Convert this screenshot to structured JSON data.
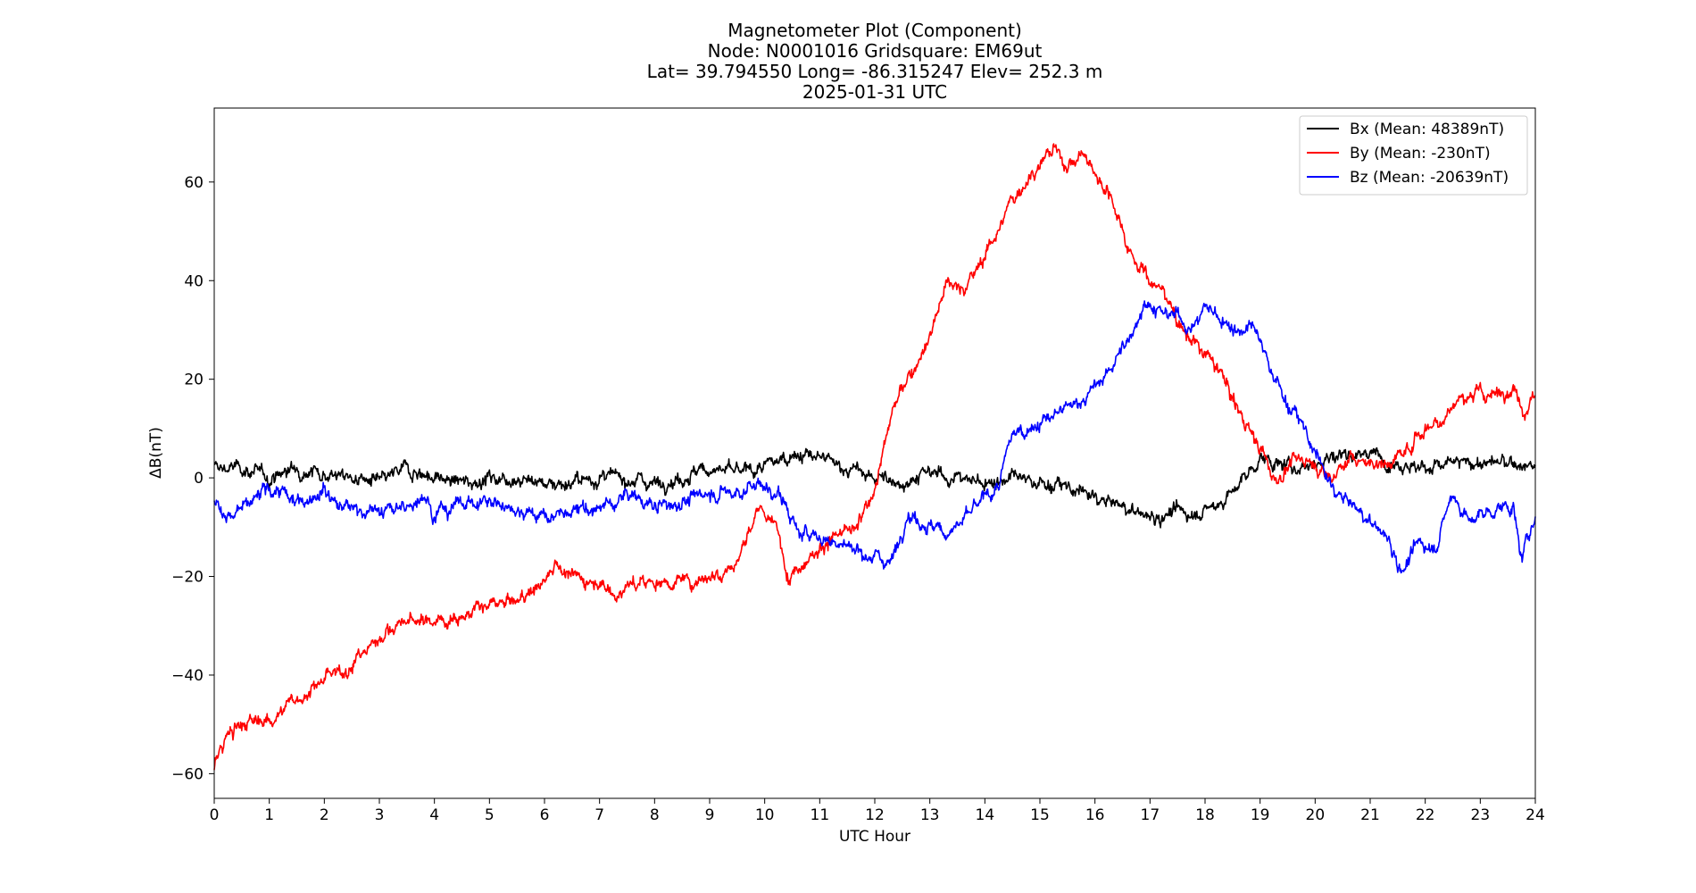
{
  "chart_data": {
    "type": "line",
    "title_lines": [
      "Magnetometer Plot (Component)",
      "Node:  N0001016     Gridsquare:  EM69ut",
      "Lat= 39.794550    Long= -86.315247    Elev= 252.3 m",
      "2025-01-31  UTC"
    ],
    "xlabel": "UTC Hour",
    "ylabel": "ΔB(nT)",
    "xlim": [
      0,
      24
    ],
    "ylim": [
      -65,
      75
    ],
    "xticks": [
      0,
      1,
      2,
      3,
      4,
      5,
      6,
      7,
      8,
      9,
      10,
      11,
      12,
      13,
      14,
      15,
      16,
      17,
      18,
      19,
      20,
      21,
      22,
      23,
      24
    ],
    "xtick_labels": [
      "0",
      "1",
      "2",
      "3",
      "4",
      "5",
      "6",
      "7",
      "8",
      "9",
      "10",
      "11",
      "12",
      "13",
      "14",
      "15",
      "16",
      "17",
      "18",
      "19",
      "20",
      "21",
      "22",
      "23",
      "24"
    ],
    "yticks": [
      -60,
      -40,
      -20,
      0,
      20,
      40,
      60
    ],
    "ytick_labels": [
      "−60",
      "−40",
      "−20",
      "0",
      "20",
      "40",
      "60"
    ],
    "legend_position": "top-right",
    "grid": false,
    "series": [
      {
        "name": "Bx (Mean: 48389nT)",
        "color": "#000000",
        "x": [
          0,
          0.5,
          1,
          1.5,
          2,
          2.5,
          3,
          3.5,
          4,
          4.5,
          5,
          5.5,
          6,
          6.5,
          7,
          7.5,
          8,
          8.5,
          9,
          9.5,
          10,
          10.5,
          11,
          11.5,
          12,
          12.5,
          13,
          13.5,
          14,
          14.5,
          15,
          15.5,
          16,
          16.5,
          17,
          17.5,
          18,
          18.5,
          19,
          19.5,
          20,
          20.5,
          21,
          21.5,
          22,
          22.5,
          23,
          23.5,
          24
        ],
        "y": [
          2,
          2,
          0,
          2,
          1,
          0,
          -1,
          2,
          0,
          -1,
          0,
          0,
          -1,
          -1,
          0,
          0,
          -1,
          0,
          2,
          1,
          2,
          5,
          4,
          2,
          0,
          -1,
          1,
          0,
          -1,
          0,
          -1,
          -2,
          -4,
          -6,
          -8,
          -7,
          -7,
          -3,
          4,
          2,
          3,
          5,
          5,
          3,
          2,
          3,
          3,
          3,
          2
        ]
      },
      {
        "name": "By (Mean: -230nT)",
        "color": "#ff0000",
        "x": [
          0,
          0.25,
          0.5,
          1,
          1.5,
          2,
          2.5,
          3,
          3.5,
          4,
          4.5,
          5,
          5.5,
          6,
          6.2,
          6.5,
          7,
          7.3,
          7.5,
          8,
          8.5,
          9,
          9.5,
          9.9,
          10.2,
          10.45,
          10.7,
          11,
          11.3,
          11.7,
          12,
          12.3,
          12.6,
          13,
          13.3,
          13.6,
          14,
          14.3,
          14.6,
          15,
          15.25,
          15.5,
          15.75,
          16,
          16.3,
          16.6,
          17,
          17.3,
          17.6,
          18,
          18.3,
          18.6,
          19,
          19.3,
          19.6,
          20,
          20.3,
          20.6,
          21,
          21.3,
          21.6,
          22,
          22.3,
          22.6,
          23,
          23.3,
          23.6,
          23.8,
          24
        ],
        "y": [
          -58,
          -52,
          -50,
          -49,
          -45,
          -41,
          -38,
          -32,
          -29,
          -29,
          -28,
          -26,
          -25,
          -21,
          -17,
          -20,
          -21,
          -24,
          -22,
          -21,
          -21,
          -20,
          -17,
          -6,
          -10,
          -20,
          -17,
          -14,
          -12,
          -10,
          -2,
          13,
          20,
          29,
          40,
          38,
          45,
          52,
          58,
          64,
          67,
          63,
          66,
          62,
          57,
          47,
          40,
          37,
          30,
          25,
          21,
          14,
          6,
          -1,
          4,
          3,
          0,
          4,
          3,
          3,
          5,
          10,
          12,
          16,
          17,
          17,
          18,
          14,
          17
        ]
      },
      {
        "name": "Bz (Mean: -20639nT)",
        "color": "#0000ff",
        "x": [
          0,
          0.3,
          0.6,
          1,
          1.5,
          2,
          2.3,
          2.6,
          3,
          3.5,
          3.8,
          4,
          4.5,
          5,
          5.5,
          6,
          6.5,
          7,
          7.3,
          7.5,
          8,
          8.5,
          9,
          9.5,
          9.9,
          10.3,
          10.6,
          11,
          11.5,
          11.8,
          12,
          12.3,
          12.6,
          13,
          13.3,
          13.6,
          14,
          14.25,
          14.5,
          15,
          15.5,
          16,
          16.4,
          16.7,
          16.9,
          17.2,
          17.5,
          17.8,
          18,
          18.3,
          18.6,
          18.9,
          19.2,
          19.5,
          19.8,
          20,
          20.3,
          20.6,
          21,
          21.3,
          21.6,
          21.9,
          22.2,
          22.5,
          22.8,
          23.1,
          23.4,
          23.6,
          23.75,
          24
        ],
        "y": [
          -5,
          -8,
          -6,
          -2,
          -5,
          -2,
          -6,
          -6,
          -7,
          -6,
          -3,
          -7,
          -5,
          -5,
          -6,
          -8,
          -7,
          -6,
          -5,
          -3,
          -6,
          -5,
          -3,
          -3,
          -1,
          -4,
          -11,
          -12,
          -14,
          -15,
          -16,
          -17,
          -7,
          -10,
          -11,
          -9,
          -4,
          -2,
          9,
          11,
          14,
          18,
          24,
          30,
          36,
          33,
          33,
          30,
          35,
          32,
          30,
          30,
          22,
          15,
          10,
          5,
          -2,
          -5,
          -9,
          -12,
          -19,
          -13,
          -14,
          -3,
          -9,
          -7,
          -6,
          -6,
          -17,
          -7
        ]
      }
    ]
  }
}
